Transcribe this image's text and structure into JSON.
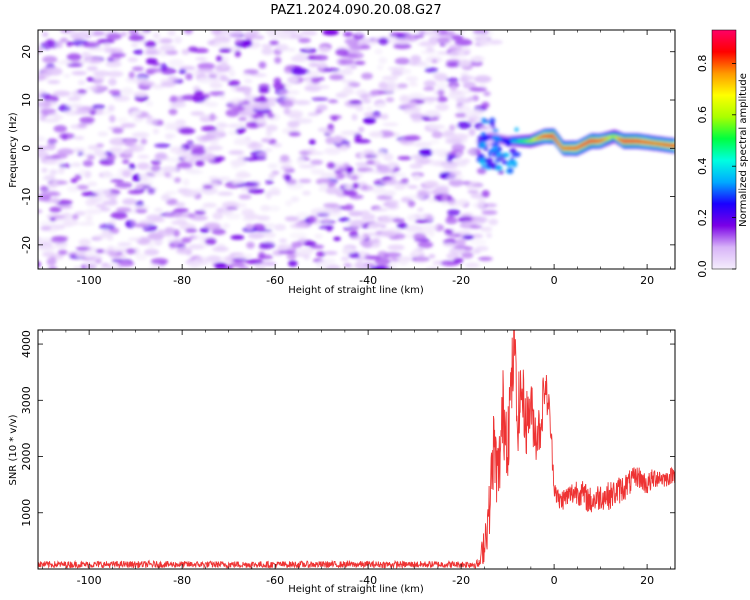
{
  "title": "PAZ1.2024.090.20.08.G27",
  "chart_data": [
    {
      "type": "heatmap",
      "xlabel": "Height of straight line (km)",
      "ylabel": "Frequency (Hz)",
      "xlim": [
        -111,
        26
      ],
      "ylim": [
        -25,
        24.5
      ],
      "xticks": [
        -100,
        -80,
        -60,
        -40,
        -20,
        0,
        20
      ],
      "yticks": [
        -20,
        -10,
        0,
        10,
        20
      ],
      "colorbar": {
        "label": "Normalized spectral amplitude",
        "range": [
          0,
          0.93
        ],
        "ticks": [
          0.0,
          0.2,
          0.4,
          0.6,
          0.8
        ],
        "colormap": [
          "#f5eefc",
          "#d8b4f8",
          "#7a00e6",
          "#1a00ff",
          "#00aaff",
          "#00ffe0",
          "#00ff40",
          "#aaff00",
          "#ffff00",
          "#ff9900",
          "#ff0000",
          "#ff0066"
        ]
      },
      "noise_region": {
        "x": [
          -111,
          -14
        ],
        "y": [
          -25,
          24.5
        ],
        "amplitude": [
          0.0,
          0.2
        ]
      },
      "signal_ridge": {
        "x": [
          -14,
          -10,
          -8,
          -5,
          -2,
          0,
          2,
          5,
          8,
          10,
          13,
          15,
          18,
          22,
          26
        ],
        "y": [
          2.5,
          1.5,
          1.5,
          1.5,
          2.5,
          2.5,
          0.0,
          0.0,
          1.5,
          1.5,
          2.5,
          1.5,
          1.5,
          1.0,
          0.5
        ],
        "amplitude": [
          0.2,
          0.35,
          0.45,
          0.6,
          0.85,
          0.9,
          0.8,
          0.85,
          0.9,
          0.85,
          0.6,
          0.9,
          0.88,
          0.8,
          0.85
        ]
      }
    },
    {
      "type": "line",
      "xlabel": "Height of straight line (km)",
      "ylabel": "SNR (10 * v/v)",
      "xlim": [
        -111,
        26
      ],
      "ylim": [
        0,
        4250
      ],
      "xticks": [
        -100,
        -80,
        -60,
        -40,
        -20,
        0,
        20
      ],
      "yticks": [
        1000,
        2000,
        3000,
        4000
      ],
      "color": "#ee3333",
      "series": [
        {
          "x": [
            -111,
            -100,
            -80,
            -60,
            -40,
            -20,
            -16,
            -15,
            -14,
            -13,
            -12,
            -11,
            -10,
            -9,
            -8.5,
            -8,
            -7,
            -6,
            -5,
            -4,
            -3,
            -2,
            -1,
            0,
            1,
            3,
            5,
            8,
            10,
            12,
            15,
            18,
            20,
            22,
            24,
            26
          ],
          "y": [
            80,
            80,
            80,
            80,
            80,
            80,
            90,
            500,
            1000,
            2200,
            1600,
            2800,
            2400,
            3400,
            4180,
            2600,
            3200,
            2600,
            2900,
            2400,
            2500,
            3300,
            2800,
            1500,
            1200,
            1300,
            1400,
            1200,
            1300,
            1300,
            1450,
            1650,
            1500,
            1650,
            1600,
            1700
          ],
          "noise_amplitude": [
            60,
            60,
            60,
            60,
            60,
            60,
            80,
            400,
            500,
            700,
            700,
            800,
            800,
            800,
            600,
            700,
            600,
            600,
            500,
            500,
            500,
            400,
            300,
            200,
            200,
            200,
            250,
            250,
            250,
            250,
            250,
            200,
            200,
            200,
            150,
            150
          ]
        }
      ]
    }
  ]
}
